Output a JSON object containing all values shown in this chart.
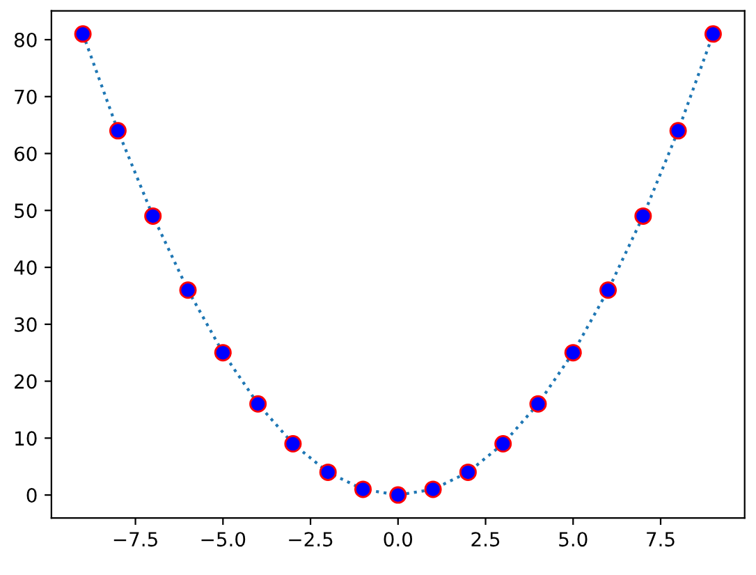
{
  "chart_data": {
    "type": "line",
    "x": [
      -9,
      -8,
      -7,
      -6,
      -5,
      -4,
      -3,
      -2,
      -1,
      0,
      1,
      2,
      3,
      4,
      5,
      6,
      7,
      8,
      9
    ],
    "series": [
      {
        "color": "#1f77b4",
        "line_style": "dotted",
        "marker": "none",
        "values": [
          81,
          64,
          49,
          36,
          25,
          16,
          9,
          4,
          1,
          0,
          1,
          4,
          9,
          16,
          25,
          36,
          49,
          64,
          81
        ]
      },
      {
        "type": "scatter",
        "color": "#0000ff",
        "marker": "circle",
        "values": [
          81,
          64,
          49,
          36,
          25,
          16,
          9,
          4,
          1,
          0,
          1,
          4,
          9,
          16,
          25,
          36,
          49,
          64,
          81
        ]
      }
    ],
    "xlim": [
      -9.9,
      9.9
    ],
    "ylim": [
      -4.05,
      85.05
    ],
    "xticks": [
      {
        "value": -7.5,
        "label": "−7.5"
      },
      {
        "value": -5,
        "label": "−5.0"
      },
      {
        "value": -2.5,
        "label": "−2.5"
      },
      {
        "value": 0,
        "label": "0.0"
      },
      {
        "value": 2.5,
        "label": "2.5"
      },
      {
        "value": 5,
        "label": "5.0"
      },
      {
        "value": 7.5,
        "label": "7.5"
      }
    ],
    "yticks": [
      0,
      10,
      20,
      30,
      40,
      50,
      60,
      70,
      80
    ],
    "grid": false
  }
}
